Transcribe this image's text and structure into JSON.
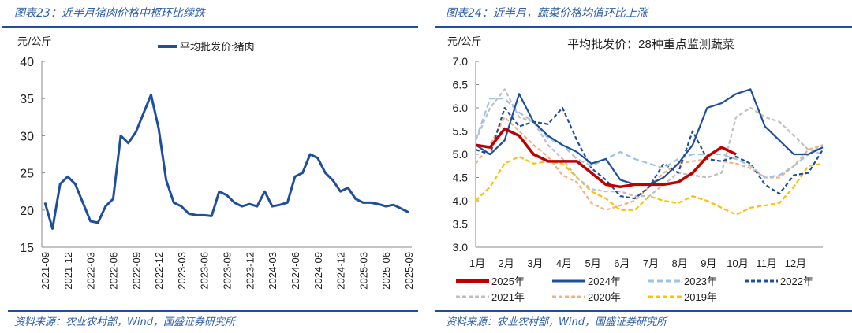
{
  "left": {
    "title": "图表23：近半月猪肉价格中枢环比续跌",
    "unit": "元/公斤",
    "source": "资料来源：农业农村部，Wind，国盛证券研究所"
  },
  "right": {
    "title": "图表24：近半月，蔬菜价格均值环比上涨",
    "unit": "元/公斤",
    "source": "资料来源：农业农村部，Wind，国盛证券研究所"
  },
  "chart_data": [
    {
      "type": "line",
      "title": "",
      "ylabel": "元/公斤",
      "ylim": [
        15,
        40
      ],
      "yticks": [
        "15",
        "20",
        "25",
        "30",
        "35",
        "40"
      ],
      "xticks": [
        "2021-09",
        "2021-12",
        "2022-03",
        "2022-06",
        "2022-09",
        "2022-12",
        "2023-03",
        "2023-06",
        "2023-09",
        "2023-12",
        "2024-03",
        "2024-06",
        "2024-09",
        "2024-12",
        "2025-03",
        "2025-06",
        "2025-09"
      ],
      "series": [
        {
          "name": "平均批发价:猪肉",
          "color": "#1f4e9c",
          "values": [
            21,
            17.5,
            23.5,
            24.5,
            23.5,
            21,
            18.5,
            18.3,
            20.5,
            21.5,
            30,
            29,
            30.5,
            33,
            35.5,
            31,
            24,
            21,
            20.5,
            19.5,
            19.3,
            19.3,
            19.2,
            22.5,
            22,
            21,
            20.5,
            20.8,
            20.5,
            22.5,
            20.5,
            20.7,
            21,
            24.5,
            25,
            27.5,
            27,
            25,
            24,
            22.5,
            23,
            21.5,
            21,
            21,
            20.8,
            20.5,
            20.7,
            20.2,
            19.7
          ]
        }
      ]
    },
    {
      "type": "line",
      "title": "平均批发价：28种重点监测蔬菜",
      "ylabel": "元/公斤",
      "ylim": [
        3.0,
        7.0
      ],
      "yticks": [
        "3.0",
        "3.5",
        "4.0",
        "4.5",
        "5.0",
        "5.5",
        "6.0",
        "6.5",
        "7.0"
      ],
      "xticks": [
        "1月",
        "2月",
        "3月",
        "4月",
        "5月",
        "6月",
        "7月",
        "8月",
        "9月",
        "10月",
        "11月",
        "12月"
      ],
      "x_step_months": 0.5,
      "series": [
        {
          "name": "2025年",
          "color": "#c00000",
          "dash": "",
          "values": [
            5.2,
            5.15,
            5.55,
            5.4,
            5.0,
            4.85,
            4.85,
            4.85,
            4.6,
            4.35,
            4.3,
            4.35,
            4.35,
            4.35,
            4.4,
            4.6,
            4.95,
            5.15,
            5.0
          ]
        },
        {
          "name": "2024年",
          "color": "#1f4e9c",
          "dash": "",
          "values": [
            5.2,
            5.0,
            5.3,
            6.3,
            5.7,
            5.4,
            5.2,
            5.05,
            4.8,
            4.9,
            4.45,
            4.35,
            4.35,
            4.5,
            4.8,
            5.2,
            6.0,
            6.1,
            6.3,
            6.4,
            5.6,
            5.3,
            5.0,
            5.0,
            5.15
          ]
        },
        {
          "name": "2023年",
          "color": "#9dc3e6",
          "dash": "7 4",
          "values": [
            5.3,
            6.2,
            6.2,
            5.9,
            5.7,
            5.35,
            5.2,
            4.9,
            4.75,
            4.9,
            5.05,
            4.9,
            4.8,
            4.7,
            4.9,
            5.0,
            5.0,
            5.0,
            4.9,
            4.75,
            4.5,
            4.55,
            4.75,
            5.0,
            5.2
          ]
        },
        {
          "name": "2022年",
          "color": "#1f4e9c",
          "dash": "5 3",
          "values": [
            5.1,
            5.0,
            6.0,
            5.6,
            5.7,
            5.65,
            6.0,
            5.3,
            4.7,
            4.45,
            4.1,
            4.05,
            4.3,
            4.8,
            4.6,
            5.5,
            4.9,
            4.85,
            4.95,
            4.8,
            4.35,
            4.15,
            4.55,
            4.6,
            5.1
          ]
        },
        {
          "name": "2021年",
          "color": "#bfbfbf",
          "dash": "5 3",
          "values": [
            5.3,
            6.0,
            6.4,
            5.8,
            5.7,
            5.2,
            4.9,
            4.5,
            4.25,
            4.2,
            4.2,
            4.1,
            4.1,
            4.35,
            4.6,
            4.55,
            4.5,
            4.6,
            5.8,
            6.0,
            5.8,
            5.7,
            5.4,
            5.1,
            5.0
          ]
        },
        {
          "name": "2020年",
          "color": "#f4b183",
          "dash": "5 3",
          "values": [
            4.8,
            5.2,
            5.8,
            5.5,
            5.2,
            4.95,
            4.55,
            4.4,
            3.95,
            3.8,
            3.9,
            4.0,
            4.3,
            4.6,
            4.8,
            4.85,
            4.9,
            4.85,
            4.8,
            4.7,
            4.5,
            4.5,
            4.75,
            5.1,
            5.2
          ]
        },
        {
          "name": "2019年",
          "color": "#ffc000",
          "dash": "6 3",
          "values": [
            4.0,
            4.3,
            4.8,
            4.95,
            4.8,
            4.85,
            4.8,
            4.5,
            4.2,
            4.05,
            3.8,
            3.8,
            4.1,
            4.0,
            3.95,
            4.1,
            4.0,
            3.85,
            3.7,
            3.85,
            3.9,
            3.95,
            4.3,
            4.75,
            4.8
          ]
        }
      ],
      "legend": "bottom"
    }
  ]
}
